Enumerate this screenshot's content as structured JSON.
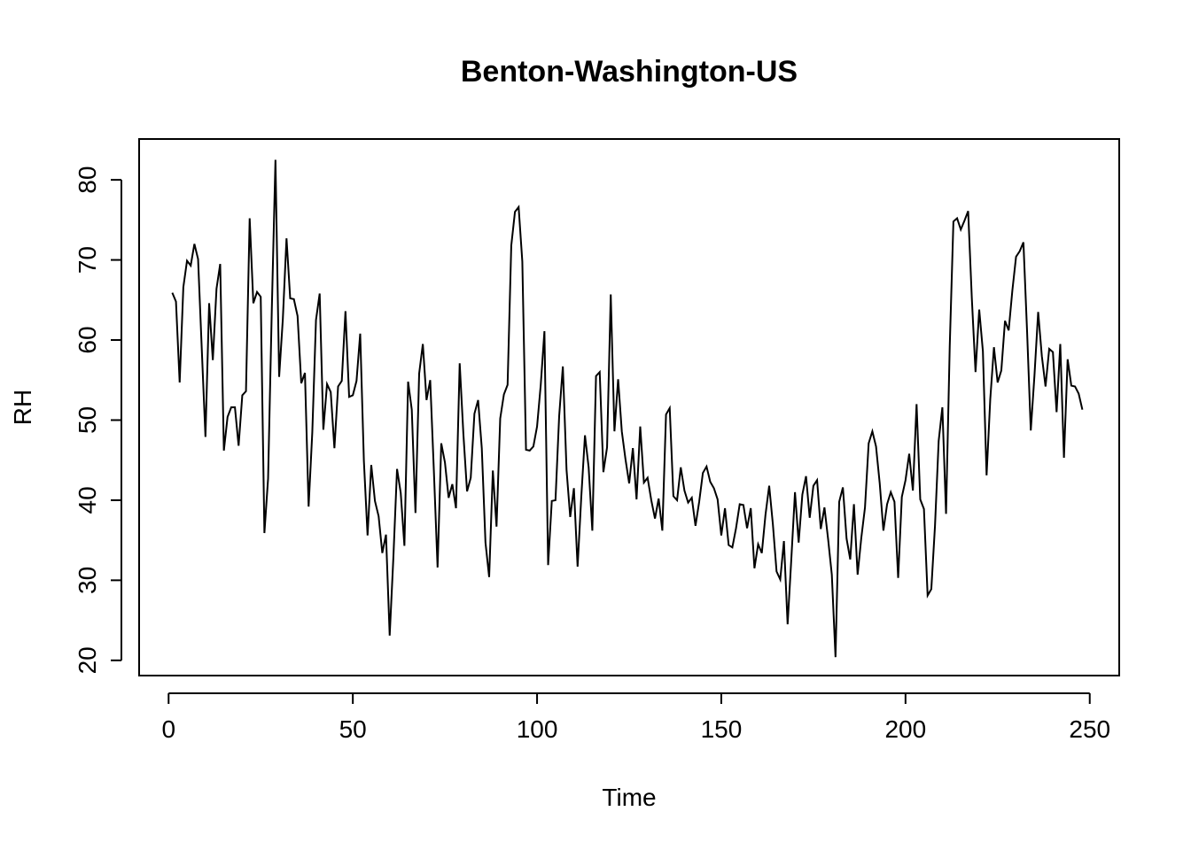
{
  "chart_data": {
    "type": "line",
    "title": "Benton-Washington-US",
    "xlabel": "Time",
    "ylabel": "RH",
    "xlim": [
      -8,
      258
    ],
    "ylim": [
      18.1,
      85.1
    ],
    "xticks": [
      0,
      50,
      100,
      150,
      200,
      250
    ],
    "yticks": [
      20,
      30,
      40,
      50,
      60,
      70,
      80
    ],
    "grid": false,
    "legend": "none",
    "series": [
      {
        "color": "#000000",
        "x": [
          1,
          2,
          3,
          4,
          5,
          6,
          7,
          8,
          9,
          10,
          11,
          12,
          13,
          14,
          15,
          16,
          17,
          18,
          19,
          20,
          21,
          22,
          23,
          24,
          25,
          26,
          27,
          28,
          29,
          30,
          31,
          32,
          33,
          34,
          35,
          36,
          37,
          38,
          39,
          40,
          41,
          42,
          43,
          44,
          45,
          46,
          47,
          48,
          49,
          50,
          51,
          52,
          53,
          54,
          55,
          56,
          57,
          58,
          59,
          60,
          61,
          62,
          63,
          64,
          65,
          66,
          67,
          68,
          69,
          70,
          71,
          72,
          73,
          74,
          75,
          76,
          77,
          78,
          79,
          80,
          81,
          82,
          83,
          84,
          85,
          86,
          87,
          88,
          89,
          90,
          91,
          92,
          93,
          94,
          95,
          96,
          97,
          98,
          99,
          100,
          101,
          102,
          103,
          104,
          105,
          106,
          107,
          108,
          109,
          110,
          111,
          112,
          113,
          114,
          115,
          116,
          117,
          118,
          119,
          120,
          121,
          122,
          123,
          124,
          125,
          126,
          127,
          128,
          129,
          130,
          131,
          132,
          133,
          134,
          135,
          136,
          137,
          138,
          139,
          140,
          141,
          142,
          143,
          144,
          145,
          146,
          147,
          148,
          149,
          150,
          151,
          152,
          153,
          154,
          155,
          156,
          157,
          158,
          159,
          160,
          161,
          162,
          163,
          164,
          165,
          166,
          167,
          168,
          169,
          170,
          171,
          172,
          173,
          174,
          175,
          176,
          177,
          178,
          179,
          180,
          181,
          182,
          183,
          184,
          185,
          186,
          187,
          188,
          189,
          190,
          191,
          192,
          193,
          194,
          195,
          196,
          197,
          198,
          199,
          200,
          201,
          202,
          203,
          204,
          205,
          206,
          207,
          208,
          209,
          210,
          211,
          212,
          213,
          214,
          215,
          216,
          217,
          218,
          219,
          220,
          221,
          222,
          223,
          224,
          225,
          226,
          227,
          228,
          229,
          230,
          231,
          232,
          233,
          234,
          235,
          236,
          237,
          238,
          239,
          240,
          241,
          242,
          243,
          244,
          245,
          246,
          247,
          248
        ],
        "y": [
          65.9,
          64.8,
          54.7,
          66.6,
          69.9,
          69.3,
          72.0,
          70.1,
          58.9,
          47.9,
          64.6,
          57.5,
          66.4,
          69.5,
          46.2,
          50.4,
          51.6,
          51.6,
          46.8,
          53.1,
          53.6,
          75.2,
          64.6,
          66.0,
          65.4,
          35.9,
          42.7,
          63.6,
          82.5,
          55.4,
          62.6,
          72.7,
          65.2,
          65.1,
          63.0,
          54.6,
          55.9,
          39.2,
          48.5,
          62.5,
          65.8,
          48.8,
          54.5,
          53.5,
          46.5,
          54.2,
          54.9,
          63.6,
          52.9,
          53.1,
          54.9,
          60.8,
          44.9,
          35.6,
          44.4,
          39.9,
          38.0,
          33.4,
          35.7,
          23.1,
          32.8,
          43.9,
          40.9,
          34.3,
          54.8,
          51.3,
          38.4,
          55.8,
          59.5,
          52.5,
          55.0,
          43.6,
          31.6,
          47.1,
          44.7,
          40.3,
          42.0,
          39.0,
          57.1,
          48.3,
          41.1,
          42.8,
          50.8,
          52.5,
          46.5,
          34.7,
          30.4,
          43.7,
          36.7,
          50.2,
          53.2,
          54.4,
          71.8,
          76.0,
          76.6,
          69.8,
          46.3,
          46.2,
          46.7,
          49.2,
          54.4,
          61.1,
          31.9,
          39.9,
          40.0,
          50.5,
          56.7,
          43.8,
          37.9,
          41.5,
          31.7,
          40.4,
          48.1,
          44.1,
          36.2,
          55.5,
          56.0,
          43.5,
          46.6,
          65.7,
          48.6,
          55.1,
          48.6,
          45.1,
          42.1,
          46.5,
          40.1,
          49.2,
          42.2,
          42.8,
          40.0,
          37.7,
          40.2,
          36.2,
          50.7,
          51.5,
          40.5,
          40.0,
          44.1,
          41.2,
          39.7,
          40.3,
          36.8,
          39.8,
          43.4,
          44.2,
          42.3,
          41.5,
          40.1,
          35.6,
          39.0,
          34.4,
          34.1,
          36.5,
          39.5,
          39.4,
          36.5,
          39.0,
          31.5,
          34.5,
          33.4,
          38.2,
          41.8,
          37.0,
          31.1,
          30.1,
          34.9,
          24.5,
          32.6,
          41.0,
          34.7,
          40.7,
          43.0,
          37.8,
          41.8,
          42.5,
          36.4,
          39.1,
          35.1,
          30.7,
          20.4,
          39.8,
          41.6,
          35.2,
          32.6,
          39.5,
          30.7,
          35.3,
          39.1,
          47.1,
          48.6,
          46.7,
          42.1,
          36.2,
          39.5,
          41.0,
          39.8,
          30.3,
          40.4,
          42.5,
          45.8,
          41.2,
          52.0,
          40.1,
          38.9,
          28.1,
          28.9,
          36.8,
          47.4,
          51.6,
          38.3,
          59.2,
          74.8,
          75.2,
          73.8,
          74.9,
          76.1,
          65.2,
          56.0,
          63.8,
          58.6,
          43.1,
          52.6,
          59.1,
          54.7,
          56.2,
          62.4,
          61.2,
          66.2,
          70.4,
          71.1,
          72.2,
          61.0,
          48.7,
          55.6,
          63.5,
          58.0,
          54.2,
          58.9,
          58.5,
          51.0,
          59.5,
          45.3,
          57.6,
          54.3,
          54.2,
          53.3,
          51.3
        ]
      }
    ]
  }
}
